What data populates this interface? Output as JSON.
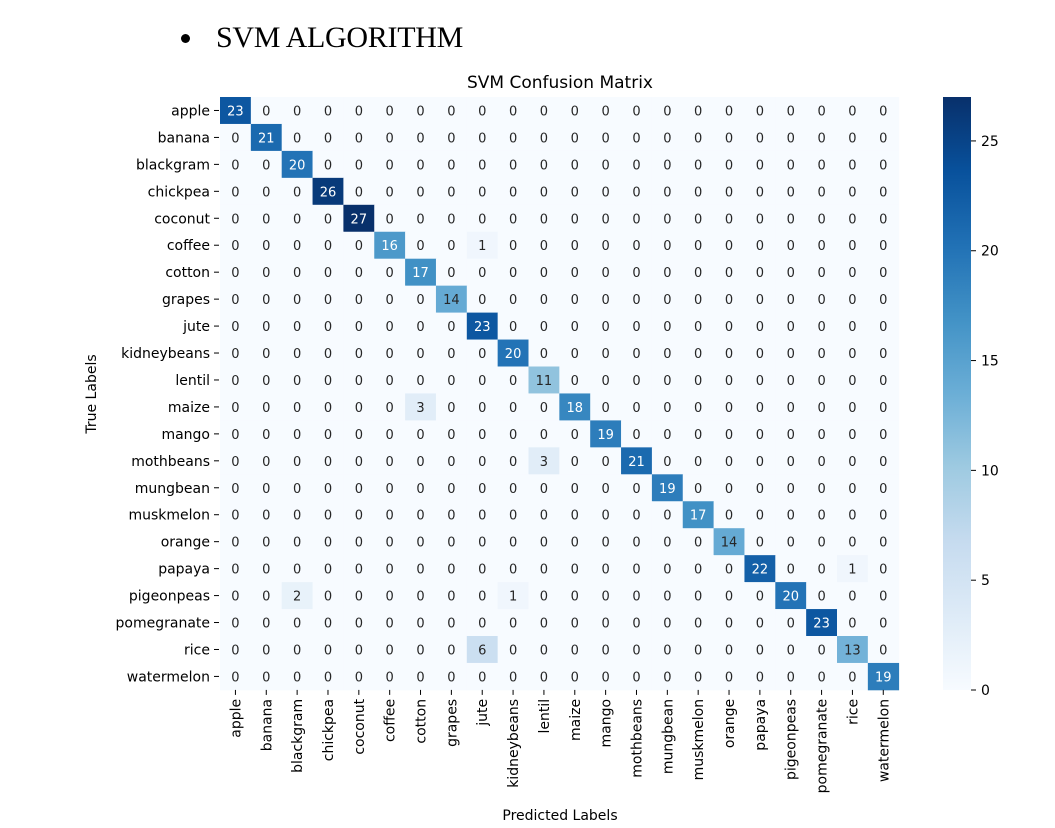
{
  "document": {
    "heading": "SVM ALGORITHM"
  },
  "chart_data": {
    "type": "heatmap",
    "title": "SVM Confusion Matrix",
    "xlabel": "Predicted Labels",
    "ylabel": "True Labels",
    "colormap": "Blues",
    "colors": {
      "low": "#f7fbff",
      "high": "#08306b"
    },
    "vmin": 0,
    "vmax": 27,
    "colorbar_ticks": [
      0,
      5,
      10,
      15,
      20,
      25
    ],
    "row_labels": [
      "apple",
      "banana",
      "blackgram",
      "chickpea",
      "coconut",
      "coffee",
      "cotton",
      "grapes",
      "jute",
      "kidneybeans",
      "lentil",
      "maize",
      "mango",
      "mothbeans",
      "mungbean",
      "muskmelon",
      "orange",
      "papaya",
      "pigeonpeas",
      "pomegranate",
      "rice",
      "watermelon"
    ],
    "col_labels": [
      "apple",
      "banana",
      "blackgram",
      "chickpea",
      "coconut",
      "coffee",
      "cotton",
      "grapes",
      "jute",
      "kidneybeans",
      "lentil",
      "maize",
      "mango",
      "mothbeans",
      "mungbean",
      "muskmelon",
      "orange",
      "papaya",
      "pigeonpeas",
      "pomegranate",
      "rice",
      "watermelon"
    ],
    "matrix": [
      [
        23,
        0,
        0,
        0,
        0,
        0,
        0,
        0,
        0,
        0,
        0,
        0,
        0,
        0,
        0,
        0,
        0,
        0,
        0,
        0,
        0,
        0
      ],
      [
        0,
        21,
        0,
        0,
        0,
        0,
        0,
        0,
        0,
        0,
        0,
        0,
        0,
        0,
        0,
        0,
        0,
        0,
        0,
        0,
        0,
        0
      ],
      [
        0,
        0,
        20,
        0,
        0,
        0,
        0,
        0,
        0,
        0,
        0,
        0,
        0,
        0,
        0,
        0,
        0,
        0,
        0,
        0,
        0,
        0
      ],
      [
        0,
        0,
        0,
        26,
        0,
        0,
        0,
        0,
        0,
        0,
        0,
        0,
        0,
        0,
        0,
        0,
        0,
        0,
        0,
        0,
        0,
        0
      ],
      [
        0,
        0,
        0,
        0,
        27,
        0,
        0,
        0,
        0,
        0,
        0,
        0,
        0,
        0,
        0,
        0,
        0,
        0,
        0,
        0,
        0,
        0
      ],
      [
        0,
        0,
        0,
        0,
        0,
        16,
        0,
        0,
        1,
        0,
        0,
        0,
        0,
        0,
        0,
        0,
        0,
        0,
        0,
        0,
        0,
        0
      ],
      [
        0,
        0,
        0,
        0,
        0,
        0,
        17,
        0,
        0,
        0,
        0,
        0,
        0,
        0,
        0,
        0,
        0,
        0,
        0,
        0,
        0,
        0
      ],
      [
        0,
        0,
        0,
        0,
        0,
        0,
        0,
        14,
        0,
        0,
        0,
        0,
        0,
        0,
        0,
        0,
        0,
        0,
        0,
        0,
        0,
        0
      ],
      [
        0,
        0,
        0,
        0,
        0,
        0,
        0,
        0,
        23,
        0,
        0,
        0,
        0,
        0,
        0,
        0,
        0,
        0,
        0,
        0,
        0,
        0
      ],
      [
        0,
        0,
        0,
        0,
        0,
        0,
        0,
        0,
        0,
        20,
        0,
        0,
        0,
        0,
        0,
        0,
        0,
        0,
        0,
        0,
        0,
        0
      ],
      [
        0,
        0,
        0,
        0,
        0,
        0,
        0,
        0,
        0,
        0,
        11,
        0,
        0,
        0,
        0,
        0,
        0,
        0,
        0,
        0,
        0,
        0
      ],
      [
        0,
        0,
        0,
        0,
        0,
        0,
        3,
        0,
        0,
        0,
        0,
        18,
        0,
        0,
        0,
        0,
        0,
        0,
        0,
        0,
        0,
        0
      ],
      [
        0,
        0,
        0,
        0,
        0,
        0,
        0,
        0,
        0,
        0,
        0,
        0,
        19,
        0,
        0,
        0,
        0,
        0,
        0,
        0,
        0,
        0
      ],
      [
        0,
        0,
        0,
        0,
        0,
        0,
        0,
        0,
        0,
        0,
        3,
        0,
        0,
        21,
        0,
        0,
        0,
        0,
        0,
        0,
        0,
        0
      ],
      [
        0,
        0,
        0,
        0,
        0,
        0,
        0,
        0,
        0,
        0,
        0,
        0,
        0,
        0,
        19,
        0,
        0,
        0,
        0,
        0,
        0,
        0
      ],
      [
        0,
        0,
        0,
        0,
        0,
        0,
        0,
        0,
        0,
        0,
        0,
        0,
        0,
        0,
        0,
        17,
        0,
        0,
        0,
        0,
        0,
        0
      ],
      [
        0,
        0,
        0,
        0,
        0,
        0,
        0,
        0,
        0,
        0,
        0,
        0,
        0,
        0,
        0,
        0,
        14,
        0,
        0,
        0,
        0,
        0
      ],
      [
        0,
        0,
        0,
        0,
        0,
        0,
        0,
        0,
        0,
        0,
        0,
        0,
        0,
        0,
        0,
        0,
        0,
        22,
        0,
        0,
        1,
        0
      ],
      [
        0,
        0,
        2,
        0,
        0,
        0,
        0,
        0,
        0,
        1,
        0,
        0,
        0,
        0,
        0,
        0,
        0,
        0,
        20,
        0,
        0,
        0
      ],
      [
        0,
        0,
        0,
        0,
        0,
        0,
        0,
        0,
        0,
        0,
        0,
        0,
        0,
        0,
        0,
        0,
        0,
        0,
        0,
        23,
        0,
        0
      ],
      [
        0,
        0,
        0,
        0,
        0,
        0,
        0,
        0,
        6,
        0,
        0,
        0,
        0,
        0,
        0,
        0,
        0,
        0,
        0,
        0,
        13,
        0
      ],
      [
        0,
        0,
        0,
        0,
        0,
        0,
        0,
        0,
        0,
        0,
        0,
        0,
        0,
        0,
        0,
        0,
        0,
        0,
        0,
        0,
        0,
        19
      ]
    ]
  }
}
